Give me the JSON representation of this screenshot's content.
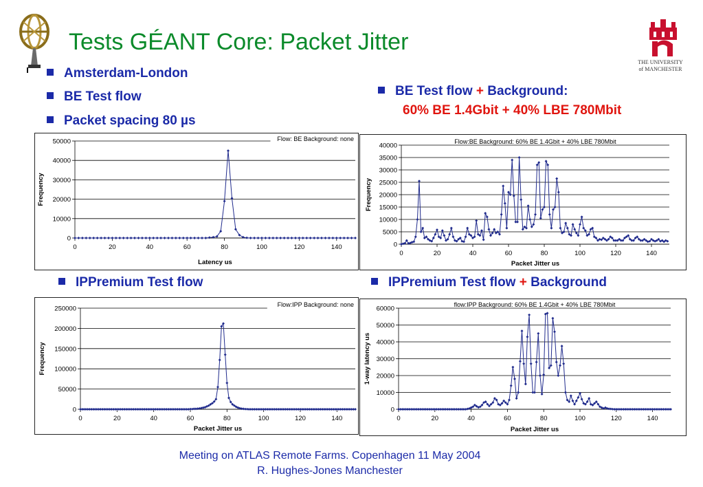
{
  "slide": {
    "title": "Tests GÉANT Core: Packet Jitter",
    "bullets_left": [
      "Amsterdam-London",
      "BE Test flow",
      "Packet spacing 80 µs"
    ],
    "right_head_a": "BE Test flow ",
    "right_head_plus": "+",
    "right_head_b": " Background:",
    "right_head_line2": "60% BE 1.4Gbit + 40% LBE 780Mbit",
    "section_left": "IPPremium Test flow",
    "section_right_a": "IPPremium Test flow ",
    "section_right_plus": "+",
    "section_right_b": " Background",
    "footer_line1": "Meeting on ATLAS Remote Farms. Copenhagen 11 May 2004",
    "footer_line2": "R. Hughes-Jones  Manchester",
    "logo_right_text1": "THE UNIVERSITY",
    "logo_right_text2": "of MANCHESTER"
  },
  "colors": {
    "title": "#0b8a2a",
    "bullet": "#1b2aa8",
    "highlight": "#e0150f",
    "series": "#1f2a8c",
    "logo_red": "#c8102e"
  },
  "chart_data": [
    {
      "type": "line",
      "title": "Flow: BE Background: none",
      "xlabel": "Latency us",
      "ylabel": "Frequency",
      "xlim": [
        0,
        150
      ],
      "ylim": [
        0,
        50000
      ],
      "xticks": [
        0,
        20,
        40,
        60,
        80,
        100,
        120,
        140
      ],
      "yticks": [
        0,
        10000,
        20000,
        30000,
        40000,
        50000
      ],
      "legend": "none",
      "grid": "horizontal",
      "x_start": 0,
      "x_step": 2,
      "values": [
        0,
        0,
        0,
        0,
        0,
        0,
        0,
        0,
        0,
        0,
        0,
        0,
        0,
        0,
        0,
        0,
        0,
        0,
        0,
        0,
        0,
        0,
        0,
        0,
        0,
        0,
        0,
        0,
        0,
        0,
        0,
        0,
        0,
        0,
        0,
        0,
        200,
        400,
        800,
        3500,
        19000,
        45000,
        20500,
        4500,
        1500,
        400,
        100,
        0,
        0,
        0,
        0,
        0,
        0,
        0,
        0,
        0,
        0,
        0,
        0,
        0,
        0,
        0,
        0,
        0,
        0,
        0,
        0,
        0,
        0,
        0,
        0,
        0,
        0,
        0,
        0,
        0
      ]
    },
    {
      "type": "line",
      "title": "Flow:BE  Background: 60% BE 1.4Gbit + 40% LBE 780Mbit",
      "xlabel": "Packet Jitter us",
      "ylabel": "Frequency",
      "xlim": [
        0,
        150
      ],
      "ylim": [
        0,
        40000
      ],
      "xticks": [
        0,
        20,
        40,
        60,
        80,
        100,
        120,
        140
      ],
      "yticks": [
        0,
        5000,
        10000,
        15000,
        20000,
        25000,
        30000,
        35000,
        40000
      ],
      "legend": "none",
      "grid": "horizontal",
      "x_start": 0,
      "x_step": 1,
      "values": [
        0,
        200,
        400,
        1500,
        300,
        500,
        800,
        1000,
        3000,
        10000,
        25500,
        5000,
        6500,
        2500,
        3000,
        2000,
        1500,
        1200,
        2500,
        4000,
        5800,
        3000,
        2500,
        5500,
        3500,
        1500,
        2000,
        4000,
        6500,
        3000,
        1500,
        1200,
        2000,
        2500,
        1200,
        1000,
        3000,
        6500,
        4000,
        3500,
        2500,
        3000,
        9500,
        4000,
        3500,
        5500,
        1800,
        12500,
        11000,
        6000,
        3500,
        4500,
        6000,
        4500,
        5000,
        4000,
        12000,
        23500,
        16500,
        6500,
        21000,
        20000,
        34000,
        19500,
        9000,
        9000,
        35000,
        18000,
        6000,
        7000,
        6500,
        15500,
        10000,
        7000,
        8000,
        12000,
        32000,
        33000,
        10500,
        14000,
        15000,
        33500,
        32000,
        12000,
        6500,
        14000,
        15000,
        26500,
        21000,
        6500,
        4500,
        5000,
        8500,
        6500,
        4000,
        3500,
        8000,
        6000,
        4500,
        3500,
        8000,
        11000,
        6500,
        5500,
        3500,
        4000,
        6000,
        6500,
        3000,
        2500,
        1500,
        2000,
        1800,
        2500,
        2000,
        1500,
        2000,
        3000,
        2500,
        1500,
        1500,
        1500,
        2000,
        1500,
        1500,
        2500,
        3000,
        3500,
        2000,
        1500,
        1500,
        2500,
        3000,
        2000,
        1500,
        1500,
        2000,
        1500,
        1000,
        1200,
        2000,
        1500,
        1200,
        1500,
        2000,
        1200,
        1500,
        1000,
        1500,
        1200
      ]
    },
    {
      "type": "line",
      "title": "Flow:IPP  Background: none",
      "xlabel": "Packet Jitter us",
      "ylabel": "Frequency",
      "xlim": [
        0,
        150
      ],
      "ylim": [
        0,
        250000
      ],
      "xticks": [
        0,
        20,
        40,
        60,
        80,
        100,
        120,
        140
      ],
      "yticks": [
        0,
        50000,
        100000,
        150000,
        200000,
        250000
      ],
      "legend": "none",
      "grid": "horizontal",
      "x_start": 0,
      "x_step": 1,
      "values": [
        0,
        0,
        0,
        0,
        0,
        0,
        0,
        0,
        0,
        0,
        0,
        0,
        0,
        0,
        0,
        0,
        0,
        0,
        0,
        0,
        0,
        0,
        0,
        0,
        0,
        0,
        0,
        0,
        0,
        0,
        0,
        0,
        0,
        0,
        0,
        0,
        0,
        0,
        0,
        0,
        0,
        0,
        0,
        0,
        0,
        0,
        0,
        0,
        0,
        0,
        0,
        0,
        0,
        0,
        0,
        0,
        0,
        0,
        0,
        0,
        500,
        500,
        1000,
        1000,
        1500,
        2000,
        3000,
        4000,
        5000,
        7000,
        9000,
        12000,
        15000,
        19000,
        25000,
        55000,
        122000,
        205000,
        212000,
        135000,
        65000,
        28000,
        18000,
        12000,
        9000,
        6000,
        4000,
        2500,
        1500,
        1000,
        500,
        300,
        0,
        0,
        0,
        0,
        0,
        0,
        0,
        0,
        0,
        0,
        0,
        0,
        0,
        0,
        0,
        0,
        0,
        0,
        0,
        0,
        0,
        0,
        0,
        0,
        0,
        0,
        0,
        0,
        0,
        0,
        0,
        0,
        0,
        0,
        0,
        0,
        0,
        0,
        0,
        0,
        0,
        0,
        0,
        0,
        0,
        0,
        0,
        0,
        0,
        0,
        0,
        0,
        0,
        0,
        0,
        0,
        0,
        0,
        0,
        0,
        0,
        0,
        0,
        0,
        0
      ]
    },
    {
      "type": "line",
      "title": "flow:IPP  Background: 60% BE 1.4Gbit + 40% LBE 780Mbit",
      "xlabel": "Packet Jitter us",
      "ylabel": "1-way latency us",
      "xlim": [
        0,
        150
      ],
      "ylim": [
        0,
        60000
      ],
      "xticks": [
        0,
        20,
        40,
        60,
        80,
        100,
        120,
        140
      ],
      "yticks": [
        0,
        10000,
        20000,
        30000,
        40000,
        50000,
        60000
      ],
      "legend": "none",
      "grid": "horizontal",
      "x_start": 0,
      "x_step": 1,
      "values": [
        0,
        0,
        0,
        0,
        0,
        0,
        0,
        0,
        0,
        0,
        0,
        0,
        0,
        0,
        0,
        0,
        0,
        0,
        0,
        0,
        0,
        0,
        0,
        0,
        0,
        0,
        0,
        0,
        0,
        0,
        0,
        0,
        0,
        0,
        0,
        0,
        0,
        0,
        200,
        500,
        1000,
        1500,
        2500,
        1800,
        1200,
        1500,
        2500,
        4000,
        4500,
        3000,
        2000,
        3000,
        4000,
        6500,
        5500,
        3000,
        2500,
        3500,
        5000,
        4000,
        3000,
        5500,
        14000,
        25000,
        18000,
        6500,
        10000,
        28500,
        46500,
        27000,
        15000,
        43000,
        56000,
        27000,
        10000,
        10000,
        28000,
        45000,
        20000,
        9000,
        20500,
        56500,
        57000,
        24500,
        26000,
        54000,
        46000,
        28000,
        20000,
        26000,
        37500,
        27000,
        10000,
        5500,
        4500,
        8000,
        5000,
        3000,
        5000,
        7000,
        9500,
        6000,
        3500,
        3000,
        4500,
        6500,
        3000,
        2500,
        3500,
        4500,
        3000,
        1500,
        1000,
        500,
        1000,
        500,
        300,
        200,
        100,
        0,
        0,
        0,
        0,
        0,
        0,
        0,
        0,
        0,
        0,
        0,
        0,
        0,
        0,
        0,
        0,
        0,
        0,
        0,
        0,
        0,
        0,
        0,
        0,
        0,
        0,
        0,
        0,
        0,
        0,
        0,
        0,
        0
      ]
    }
  ]
}
